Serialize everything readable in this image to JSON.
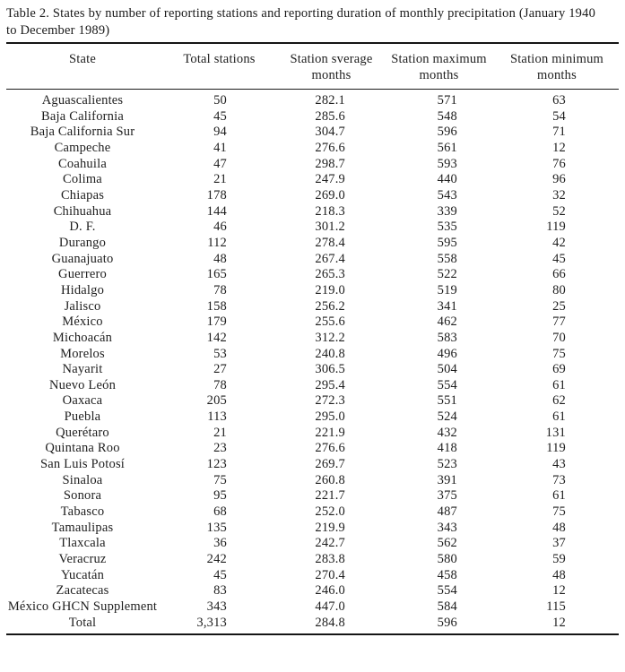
{
  "page": {
    "background_color": "#ffffff",
    "text_color": "#1e1e1e",
    "rule_color": "#151515"
  },
  "title": {
    "line1": "Table 2. States by number of reporting stations and reporting duration of monthly precipitation (January 1940",
    "line2": "to December 1989)"
  },
  "table": {
    "columns": [
      "State",
      "Total stations",
      "Station sverage months",
      "Station maximum months",
      "Station minimum months"
    ],
    "rows": [
      [
        "Aguascalientes",
        "50",
        "282.1",
        "571",
        "63"
      ],
      [
        "Baja California",
        "45",
        "285.6",
        "548",
        "54"
      ],
      [
        "Baja California Sur",
        "94",
        "304.7",
        "596",
        "71"
      ],
      [
        "Campeche",
        "41",
        "276.6",
        "561",
        "12"
      ],
      [
        "Coahuila",
        "47",
        "298.7",
        "593",
        "76"
      ],
      [
        "Colima",
        "21",
        "247.9",
        "440",
        "96"
      ],
      [
        "Chiapas",
        "178",
        "269.0",
        "543",
        "32"
      ],
      [
        "Chihuahua",
        "144",
        "218.3",
        "339",
        "52"
      ],
      [
        "D. F.",
        "46",
        "301.2",
        "535",
        "119"
      ],
      [
        "Durango",
        "112",
        "278.4",
        "595",
        "42"
      ],
      [
        "Guanajuato",
        "48",
        "267.4",
        "558",
        "45"
      ],
      [
        "Guerrero",
        "165",
        "265.3",
        "522",
        "66"
      ],
      [
        "Hidalgo",
        "78",
        "219.0",
        "519",
        "80"
      ],
      [
        "Jalisco",
        "158",
        "256.2",
        "341",
        "25"
      ],
      [
        "México",
        "179",
        "255.6",
        "462",
        "77"
      ],
      [
        "Michoacán",
        "142",
        "312.2",
        "583",
        "70"
      ],
      [
        "Morelos",
        "53",
        "240.8",
        "496",
        "75"
      ],
      [
        "Nayarit",
        "27",
        "306.5",
        "504",
        "69"
      ],
      [
        "Nuevo León",
        "78",
        "295.4",
        "554",
        "61"
      ],
      [
        "Oaxaca",
        "205",
        "272.3",
        "551",
        "62"
      ],
      [
        "Puebla",
        "113",
        "295.0",
        "524",
        "61"
      ],
      [
        "Querétaro",
        "21",
        "221.9",
        "432",
        "131"
      ],
      [
        "Quintana Roo",
        "23",
        "276.6",
        "418",
        "119"
      ],
      [
        "San Luis Potosí",
        "123",
        "269.7",
        "523",
        "43"
      ],
      [
        "Sinaloa",
        "75",
        "260.8",
        "391",
        "73"
      ],
      [
        "Sonora",
        "95",
        "221.7",
        "375",
        "61"
      ],
      [
        "Tabasco",
        "68",
        "252.0",
        "487",
        "75"
      ],
      [
        "Tamaulipas",
        "135",
        "219.9",
        "343",
        "48"
      ],
      [
        "Tlaxcala",
        "36",
        "242.7",
        "562",
        "37"
      ],
      [
        "Veracruz",
        "242",
        "283.8",
        "580",
        "59"
      ],
      [
        "Yucatán",
        "45",
        "270.4",
        "458",
        "48"
      ],
      [
        "Zacatecas",
        "83",
        "246.0",
        "554",
        "12"
      ],
      [
        "México GHCN Supplement",
        "343",
        "447.0",
        "584",
        "115"
      ],
      [
        "Total",
        "3,313",
        "284.8",
        "596",
        "12"
      ]
    ]
  }
}
